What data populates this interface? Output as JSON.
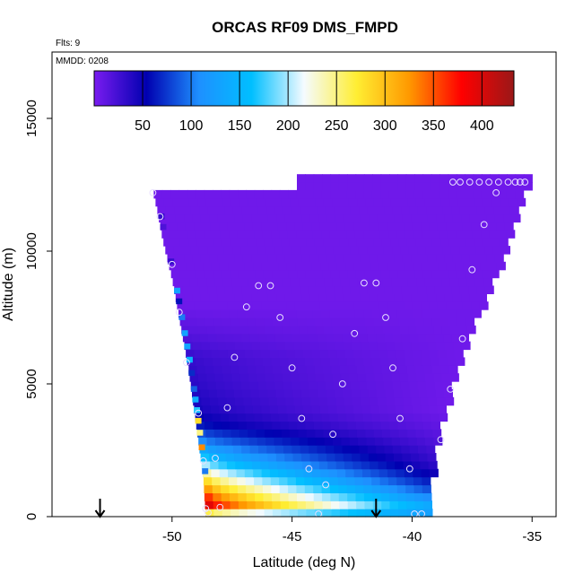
{
  "chart_data": {
    "type": "heatmap",
    "title": "ORCAS RF09 DMS_FMPD",
    "subtitle_flights": "Flts: 9",
    "subtitle_date": "MMDD: 0208",
    "xlabel": "Latitude (deg N)",
    "ylabel": "Altitude (m)",
    "xlim": [
      -55,
      -34
    ],
    "ylim": [
      0,
      17500
    ],
    "x_ticks": [
      -50,
      -45,
      -40,
      -35
    ],
    "x_tick_labels": [
      "-50",
      "-45",
      "-40",
      "-35"
    ],
    "y_ticks": [
      0,
      5000,
      10000,
      15000
    ],
    "y_tick_labels": [
      "0",
      "5000",
      "10000",
      "15000"
    ],
    "colorbar": {
      "min": 0,
      "max": 433,
      "ticks": [
        50,
        100,
        150,
        200,
        250,
        300,
        350,
        400
      ],
      "tick_labels": [
        "50",
        "100",
        "150",
        "200",
        "250",
        "300",
        "350",
        "400"
      ],
      "stops": [
        "#7a1cf0",
        "#0000b0",
        "#1e90ff",
        "#00bfff",
        "#f5fbff",
        "#ffee33",
        "#ff9900",
        "#ff0000",
        "#9a1818"
      ]
    },
    "field_outline": {
      "left_edge": [
        [
          -50.8,
          12300
        ],
        [
          -50.6,
          11500
        ],
        [
          -50.4,
          10500
        ],
        [
          -50.0,
          9000
        ],
        [
          -49.6,
          7000
        ],
        [
          -49.3,
          5500
        ],
        [
          -49.0,
          3500
        ],
        [
          -48.7,
          1500
        ],
        [
          -48.6,
          0
        ]
      ],
      "right_edge": [
        [
          -35.2,
          12700
        ],
        [
          -35.8,
          11000
        ],
        [
          -36.6,
          9000
        ],
        [
          -37.6,
          7000
        ],
        [
          -38.4,
          5000
        ],
        [
          -39.0,
          3000
        ],
        [
          -39.4,
          1000
        ],
        [
          -39.5,
          0
        ]
      ]
    },
    "heatmap_rows": [
      {
        "alt": 0,
        "left": 120,
        "right": 105
      },
      {
        "alt": 300,
        "left": 410,
        "right": 150
      },
      {
        "alt": 600,
        "left": 380,
        "right": 120
      },
      {
        "alt": 900,
        "left": 340,
        "right": 95
      },
      {
        "alt": 1200,
        "left": 300,
        "right": 70
      },
      {
        "alt": 1500,
        "left": 260,
        "right": 55
      },
      {
        "alt": 1800,
        "left": 220,
        "right": 40
      },
      {
        "alt": 2100,
        "left": 180,
        "right": 30
      },
      {
        "alt": 2400,
        "left": 150,
        "right": 25
      },
      {
        "alt": 2700,
        "left": 120,
        "right": 20
      },
      {
        "alt": 3000,
        "left": 95,
        "right": 15
      },
      {
        "alt": 3500,
        "left": 60,
        "right": 10
      },
      {
        "alt": 4000,
        "left": 45,
        "right": 5
      },
      {
        "alt": 4500,
        "left": 40,
        "right": 5
      },
      {
        "alt": 5000,
        "left": 35,
        "right": 5
      },
      {
        "alt": 6000,
        "left": 30,
        "right": 5
      },
      {
        "alt": 7000,
        "left": 15,
        "right": 5
      },
      {
        "alt": 8000,
        "left": 5,
        "right": 5
      },
      {
        "alt": 12800,
        "left": 5,
        "right": 5
      }
    ],
    "left_edge_cells": [
      {
        "alt": 1600,
        "value": 100
      },
      {
        "alt": 2500,
        "value": 330
      },
      {
        "alt": 3050,
        "value": 250
      },
      {
        "alt": 3500,
        "value": 280
      },
      {
        "alt": 3900,
        "value": 170
      },
      {
        "alt": 4300,
        "value": 140
      },
      {
        "alt": 4700,
        "value": 90
      },
      {
        "alt": 5300,
        "value": 70
      },
      {
        "alt": 5800,
        "value": 150
      },
      {
        "alt": 6300,
        "value": 130
      },
      {
        "alt": 6800,
        "value": 130
      },
      {
        "alt": 7400,
        "value": 100
      },
      {
        "alt": 8000,
        "value": 60
      },
      {
        "alt": 8400,
        "value": 130
      },
      {
        "alt": 9500,
        "value": 30
      },
      {
        "alt": 10800,
        "value": 20
      },
      {
        "alt": 11200,
        "value": 30
      }
    ],
    "samples": [
      {
        "x": -50.8,
        "y": 12200
      },
      {
        "x": -50.5,
        "y": 11300
      },
      {
        "x": -50.0,
        "y": 9500
      },
      {
        "x": -49.7,
        "y": 7700
      },
      {
        "x": -49.4,
        "y": 5800
      },
      {
        "x": -48.9,
        "y": 3900
      },
      {
        "x": -48.7,
        "y": 2100
      },
      {
        "x": -48.6,
        "y": 300
      },
      {
        "x": -48.5,
        "y": 150
      },
      {
        "x": -48.0,
        "y": 350
      },
      {
        "x": -48.2,
        "y": 2200
      },
      {
        "x": -47.7,
        "y": 4100
      },
      {
        "x": -47.4,
        "y": 6000
      },
      {
        "x": -46.9,
        "y": 7900
      },
      {
        "x": -46.4,
        "y": 8700
      },
      {
        "x": -45.9,
        "y": 8700
      },
      {
        "x": -45.5,
        "y": 7500
      },
      {
        "x": -45.0,
        "y": 5600
      },
      {
        "x": -44.6,
        "y": 3700
      },
      {
        "x": -44.3,
        "y": 1800
      },
      {
        "x": -43.9,
        "y": 100
      },
      {
        "x": -43.6,
        "y": 1200
      },
      {
        "x": -43.3,
        "y": 3100
      },
      {
        "x": -42.9,
        "y": 5000
      },
      {
        "x": -42.4,
        "y": 6900
      },
      {
        "x": -42.0,
        "y": 8800
      },
      {
        "x": -41.5,
        "y": 8800
      },
      {
        "x": -41.1,
        "y": 7500
      },
      {
        "x": -40.8,
        "y": 5600
      },
      {
        "x": -40.5,
        "y": 3700
      },
      {
        "x": -40.1,
        "y": 1800
      },
      {
        "x": -39.9,
        "y": 100
      },
      {
        "x": -39.6,
        "y": 100
      },
      {
        "x": -38.8,
        "y": 2900
      },
      {
        "x": -38.4,
        "y": 4800
      },
      {
        "x": -37.9,
        "y": 6700
      },
      {
        "x": -37.5,
        "y": 9300
      },
      {
        "x": -37.0,
        "y": 11000
      },
      {
        "x": -36.5,
        "y": 12200
      },
      {
        "x": -38.3,
        "y": 12600
      },
      {
        "x": -38.0,
        "y": 12600
      },
      {
        "x": -37.6,
        "y": 12600
      },
      {
        "x": -37.2,
        "y": 12600
      },
      {
        "x": -36.8,
        "y": 12600
      },
      {
        "x": -36.4,
        "y": 12600
      },
      {
        "x": -36.0,
        "y": 12600
      },
      {
        "x": -35.7,
        "y": 12600
      },
      {
        "x": -35.5,
        "y": 12600
      },
      {
        "x": -35.3,
        "y": 12600
      }
    ],
    "arrows": [
      {
        "x": -53.0,
        "y": 0
      },
      {
        "x": -41.5,
        "y": 0
      }
    ],
    "grid": false
  }
}
